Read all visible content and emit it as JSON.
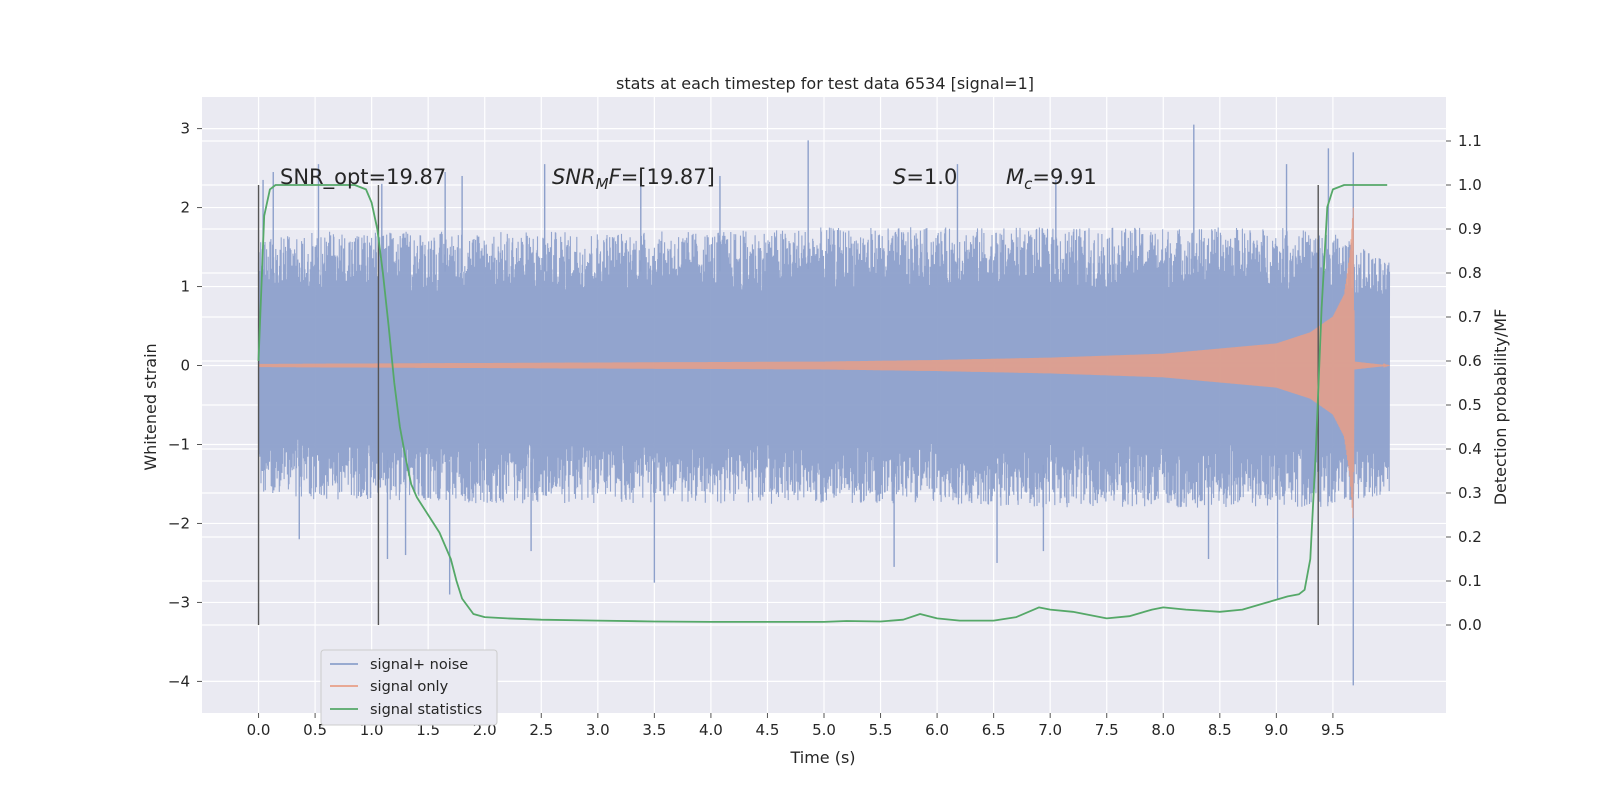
{
  "chart_data": {
    "type": "line",
    "title": "stats at each timestep for test data 6534 [signal=1]",
    "xlabel": "Time (s)",
    "ylabel": "Whitened strain",
    "y2label": "Detection probability/MF",
    "xlim": [
      -0.5,
      10.5
    ],
    "ylim": [
      -4.4,
      3.4
    ],
    "y2lim": [
      -0.2,
      1.2
    ],
    "xticks": [
      "0.0",
      "0.5",
      "1.0",
      "1.5",
      "2.0",
      "2.5",
      "3.0",
      "3.5",
      "4.0",
      "4.5",
      "5.0",
      "5.5",
      "6.0",
      "6.5",
      "7.0",
      "7.5",
      "8.0",
      "8.5",
      "9.0",
      "9.5"
    ],
    "yticks": [
      "3",
      "2",
      "1",
      "0",
      "−1",
      "−2",
      "−3",
      "−4"
    ],
    "y2ticks": [
      "1.1",
      "1.0",
      "0.9",
      "0.8",
      "0.7",
      "0.6",
      "0.5",
      "0.4",
      "0.3",
      "0.2",
      "0.1",
      "0.0"
    ],
    "grid": true,
    "legend": {
      "position": "lower-left",
      "entries": [
        "signal+ noise",
        "signal only",
        "signal statistics"
      ]
    },
    "annotations": {
      "snr_opt": "SNR_opt=19.87",
      "snr_mf_base": "SNR",
      "snr_mf_sub": "M",
      "snr_mf_rest": "F",
      "snr_mf_value": "=[19.87]",
      "s_label": "S",
      "s_value": "=1.0",
      "mc_base": "M",
      "mc_sub": "c",
      "mc_value": "=9.91"
    },
    "vertical_markers_x": [
      0.0,
      1.06,
      9.37
    ],
    "series": [
      {
        "name": "signal+ noise",
        "color": "#8da0cb",
        "noise_envelope_upper": [
          [
            0.0,
            1.6
          ],
          [
            0.5,
            1.7
          ],
          [
            1.0,
            1.7
          ],
          [
            2.0,
            1.7
          ],
          [
            3.0,
            1.7
          ],
          [
            4.0,
            1.7
          ],
          [
            5.0,
            1.75
          ],
          [
            6.0,
            1.75
          ],
          [
            7.0,
            1.75
          ],
          [
            8.0,
            1.75
          ],
          [
            9.0,
            1.75
          ],
          [
            9.5,
            1.7
          ],
          [
            10.0,
            1.3
          ]
        ],
        "noise_envelope_lower": [
          [
            0.0,
            -1.6
          ],
          [
            0.5,
            -1.7
          ],
          [
            1.0,
            -1.7
          ],
          [
            2.0,
            -1.75
          ],
          [
            3.0,
            -1.75
          ],
          [
            4.0,
            -1.75
          ],
          [
            5.0,
            -1.75
          ],
          [
            6.0,
            -1.75
          ],
          [
            7.0,
            -1.8
          ],
          [
            8.0,
            -1.8
          ],
          [
            9.0,
            -1.8
          ],
          [
            9.5,
            -1.8
          ],
          [
            10.0,
            -1.7
          ]
        ],
        "peaks": [
          [
            0.04,
            2.35
          ],
          [
            0.13,
            2.45
          ],
          [
            0.53,
            2.55
          ],
          [
            1.09,
            2.3
          ],
          [
            1.65,
            2.45
          ],
          [
            1.8,
            2.4
          ],
          [
            2.53,
            2.55
          ],
          [
            3.38,
            2.4
          ],
          [
            4.08,
            2.4
          ],
          [
            4.86,
            2.85
          ],
          [
            6.18,
            2.55
          ],
          [
            7.05,
            2.35
          ],
          [
            8.27,
            3.05
          ],
          [
            9.09,
            2.55
          ],
          [
            9.46,
            2.75
          ],
          [
            9.68,
            2.7
          ],
          [
            0.36,
            -2.2
          ],
          [
            1.14,
            -2.45
          ],
          [
            1.3,
            -2.4
          ],
          [
            1.69,
            -2.9
          ],
          [
            2.41,
            -2.35
          ],
          [
            3.5,
            -2.75
          ],
          [
            5.62,
            -2.55
          ],
          [
            6.53,
            -2.5
          ],
          [
            6.94,
            -2.35
          ],
          [
            8.4,
            -2.45
          ],
          [
            9.01,
            -2.95
          ],
          [
            9.68,
            -4.05
          ]
        ]
      },
      {
        "name": "signal only",
        "color": "#e89f87",
        "amplitude_profile": [
          [
            0.0,
            0.02
          ],
          [
            5.0,
            0.05
          ],
          [
            6.0,
            0.07
          ],
          [
            7.0,
            0.1
          ],
          [
            8.0,
            0.15
          ],
          [
            9.0,
            0.28
          ],
          [
            9.3,
            0.42
          ],
          [
            9.5,
            0.62
          ],
          [
            9.6,
            0.9
          ],
          [
            9.65,
            1.4
          ],
          [
            9.68,
            2.0
          ],
          [
            9.69,
            0.05
          ],
          [
            10.0,
            0.0
          ]
        ]
      },
      {
        "name": "signal statistics",
        "color": "#55a868",
        "axis": "right",
        "x": [
          0.0,
          0.05,
          0.1,
          0.15,
          0.2,
          0.3,
          0.5,
          0.7,
          0.85,
          0.95,
          1.0,
          1.05,
          1.1,
          1.15,
          1.2,
          1.25,
          1.3,
          1.35,
          1.4,
          1.5,
          1.6,
          1.7,
          1.75,
          1.8,
          1.9,
          2.0,
          2.2,
          2.5,
          3.0,
          3.5,
          4.0,
          4.5,
          5.0,
          5.2,
          5.5,
          5.7,
          5.85,
          6.0,
          6.2,
          6.5,
          6.7,
          6.9,
          7.0,
          7.2,
          7.5,
          7.7,
          7.9,
          8.0,
          8.2,
          8.5,
          8.7,
          8.9,
          9.1,
          9.2,
          9.25,
          9.3,
          9.35,
          9.4,
          9.45,
          9.5,
          9.6,
          9.7,
          9.8,
          9.9,
          9.98
        ],
        "y": [
          0.6,
          0.93,
          0.99,
          1.0,
          1.0,
          1.0,
          1.0,
          1.0,
          1.0,
          0.99,
          0.96,
          0.9,
          0.8,
          0.68,
          0.55,
          0.45,
          0.38,
          0.32,
          0.29,
          0.25,
          0.21,
          0.15,
          0.1,
          0.06,
          0.025,
          0.018,
          0.015,
          0.012,
          0.01,
          0.008,
          0.007,
          0.007,
          0.007,
          0.009,
          0.008,
          0.012,
          0.025,
          0.015,
          0.01,
          0.01,
          0.018,
          0.04,
          0.035,
          0.03,
          0.015,
          0.02,
          0.035,
          0.04,
          0.035,
          0.03,
          0.035,
          0.05,
          0.065,
          0.07,
          0.08,
          0.15,
          0.4,
          0.72,
          0.95,
          0.99,
          1.0,
          1.0,
          1.0,
          1.0,
          1.0
        ]
      }
    ]
  }
}
